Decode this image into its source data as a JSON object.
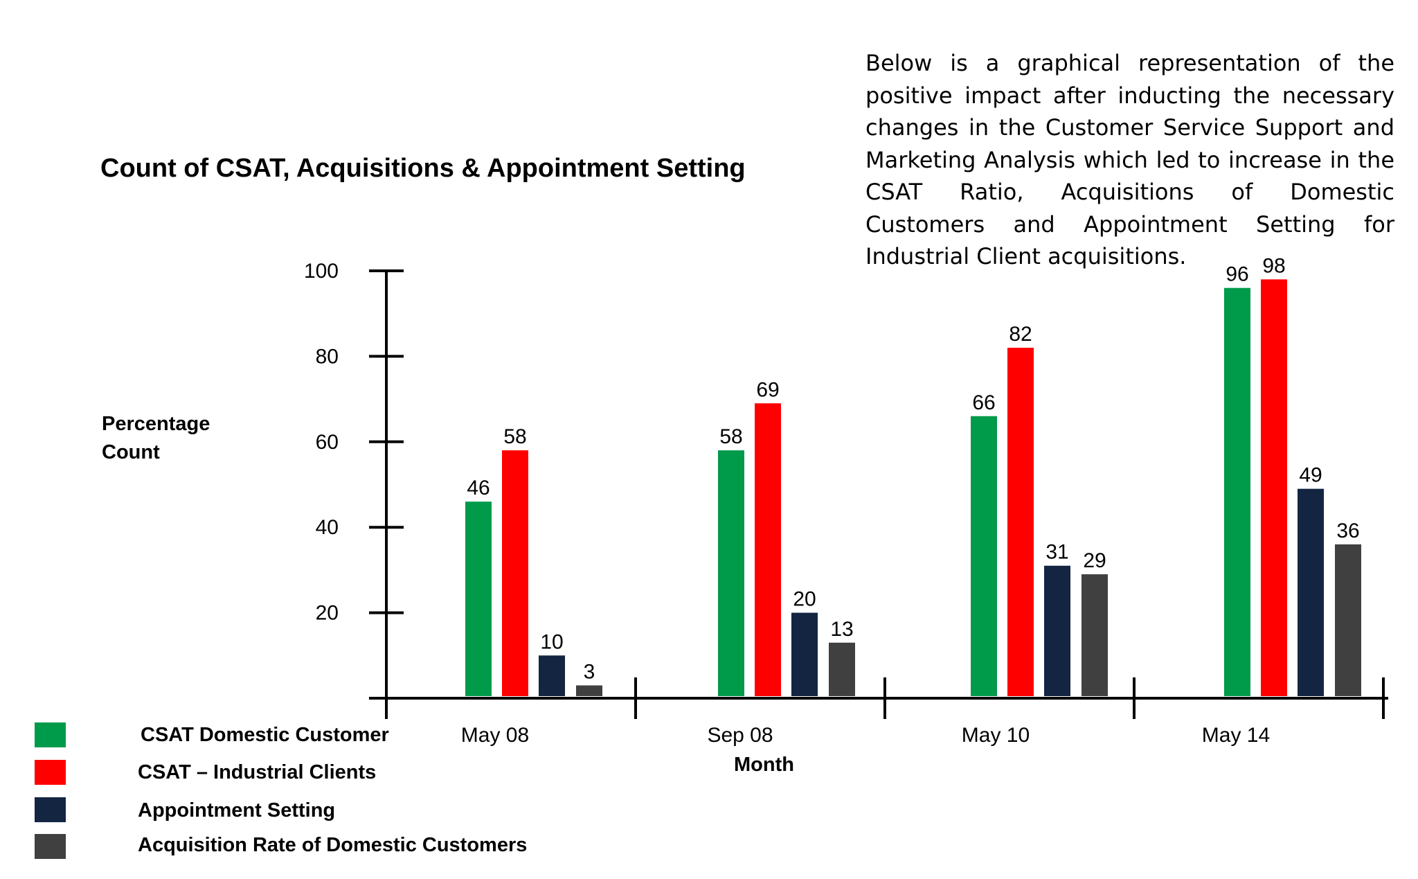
{
  "chart_data": {
    "type": "bar",
    "title": "Count of CSAT, Acquisitions & Appointment Setting",
    "xlabel": "Month",
    "ylabel_lines": [
      "Percentage",
      "Count"
    ],
    "categories": [
      "May 08",
      "Sep 08",
      "May 10",
      "May 14"
    ],
    "y_ticks": [
      20,
      40,
      60,
      80,
      100
    ],
    "ylim": [
      0,
      100
    ],
    "grid": false,
    "legend_position": "bottom-left",
    "series": [
      {
        "name": "CSAT Domestic  Customer",
        "color": "#009A4B",
        "values": [
          46,
          58,
          66,
          96
        ]
      },
      {
        "name": "CSAT – Industrial Clients",
        "color": "#FF0000",
        "values": [
          58,
          69,
          82,
          98
        ]
      },
      {
        "name": "Appointment Setting",
        "color": "#132541",
        "values": [
          10,
          20,
          31,
          49
        ]
      },
      {
        "name": "Acquisition  Rate  of Domestic Customers",
        "color": "#404040",
        "values": [
          3,
          13,
          29,
          36
        ]
      }
    ]
  },
  "description": "Below is a graphical representation of the positive impact after inducting the necessary changes in the Customer Service Support and Marketing Analysis which led to increase in the CSAT Ratio, Acquisitions of Domestic Customers and Appointment Setting for Industrial Client acquisitions."
}
